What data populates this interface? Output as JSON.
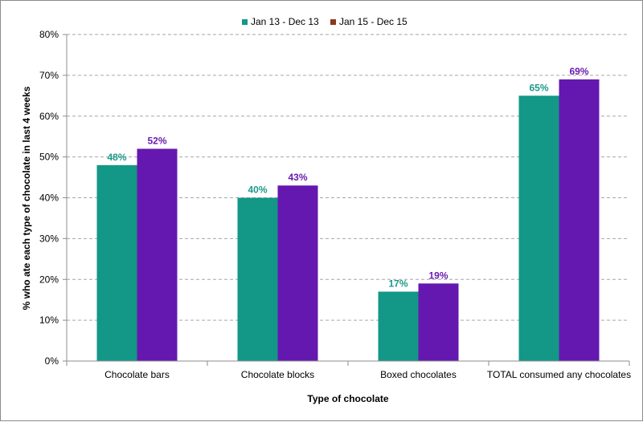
{
  "chart_data": {
    "type": "bar",
    "title": "",
    "xlabel": "Type of chocolate",
    "ylabel": "% who ate each type of chocolate in last 4 weeks",
    "categories": [
      "Chocolate bars",
      "Chocolate blocks",
      "Boxed chocolates",
      "TOTAL consumed any chocolates"
    ],
    "series": [
      {
        "name": "Jan 13 - Dec 13",
        "values": [
          48,
          40,
          17,
          65
        ],
        "labels": [
          "48%",
          "40%",
          "17%",
          "65%"
        ],
        "color": "#139787",
        "label_color": "#1a9a8a",
        "legend_color": "#139787"
      },
      {
        "name": "Jan 15 - Dec 15",
        "values": [
          52,
          43,
          19,
          69
        ],
        "labels": [
          "52%",
          "43%",
          "19%",
          "69%"
        ],
        "color": "#6418b0",
        "label_color": "#6a1ab2",
        "legend_color": "#8b3a1f"
      }
    ],
    "ylim": [
      0,
      80
    ],
    "yticks": [
      0,
      10,
      20,
      30,
      40,
      50,
      60,
      70,
      80
    ],
    "ytick_labels": [
      "0%",
      "10%",
      "20%",
      "30%",
      "40%",
      "50%",
      "60%",
      "70%",
      "80%"
    ],
    "grid": true,
    "legend_position": "top"
  }
}
